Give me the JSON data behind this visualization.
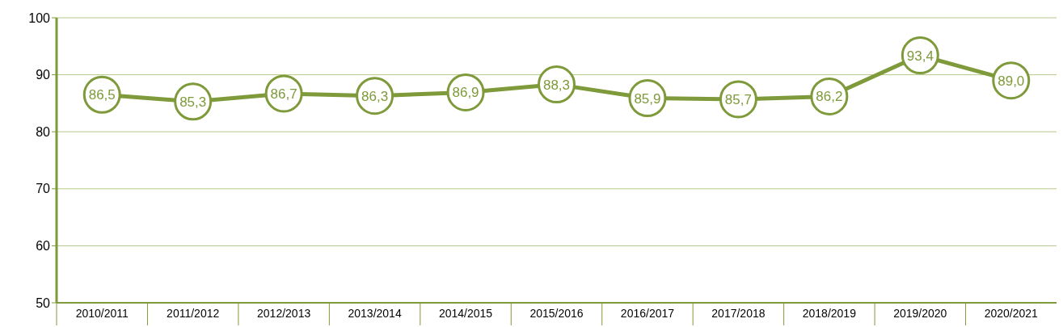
{
  "chart_data": {
    "type": "line",
    "categories": [
      "2010/2011",
      "2011/2012",
      "2012/2013",
      "2013/2014",
      "2014/2015",
      "2015/2016",
      "2016/2017",
      "2017/2018",
      "2018/2019",
      "2019/2020",
      "2020/2021"
    ],
    "series": [
      {
        "color": "#7f9a3a",
        "values": [
          86.5,
          85.3,
          86.7,
          86.3,
          86.9,
          88.3,
          85.9,
          85.7,
          86.2,
          93.4,
          89.0
        ],
        "value_labels": [
          "86,5",
          "85,3",
          "86,7",
          "86,3",
          "86,9",
          "88,3",
          "85,9",
          "85,7",
          "86,2",
          "93,4",
          "89,0"
        ]
      }
    ],
    "ylim": [
      50,
      100
    ],
    "yticks": [
      50,
      60,
      70,
      80,
      90,
      100
    ],
    "grid": "y",
    "marker": "circle",
    "line_style": "solid"
  }
}
